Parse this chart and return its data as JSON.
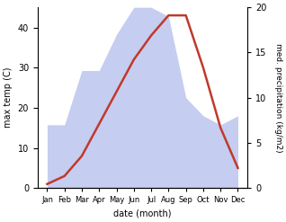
{
  "months": [
    "Jan",
    "Feb",
    "Mar",
    "Apr",
    "May",
    "Jun",
    "Jul",
    "Aug",
    "Sep",
    "Oct",
    "Nov",
    "Dec"
  ],
  "temperature": [
    1,
    3,
    8,
    16,
    24,
    32,
    38,
    43,
    43,
    30,
    15,
    5
  ],
  "precipitation": [
    7,
    7,
    13,
    13,
    17,
    20,
    20,
    19,
    10,
    8,
    7,
    8
  ],
  "temp_color": "#c0392b",
  "precip_fill_color": "#c5cdf0",
  "left_ylabel": "max temp (C)",
  "right_ylabel": "med. precipitation (kg/m2)",
  "xlabel": "date (month)",
  "temp_ylim": [
    0,
    45
  ],
  "precip_ylim": [
    0,
    20
  ],
  "temp_yticks": [
    0,
    10,
    20,
    30,
    40
  ],
  "precip_yticks": [
    0,
    5,
    10,
    15,
    20
  ],
  "fig_width": 3.18,
  "fig_height": 2.47,
  "dpi": 100
}
